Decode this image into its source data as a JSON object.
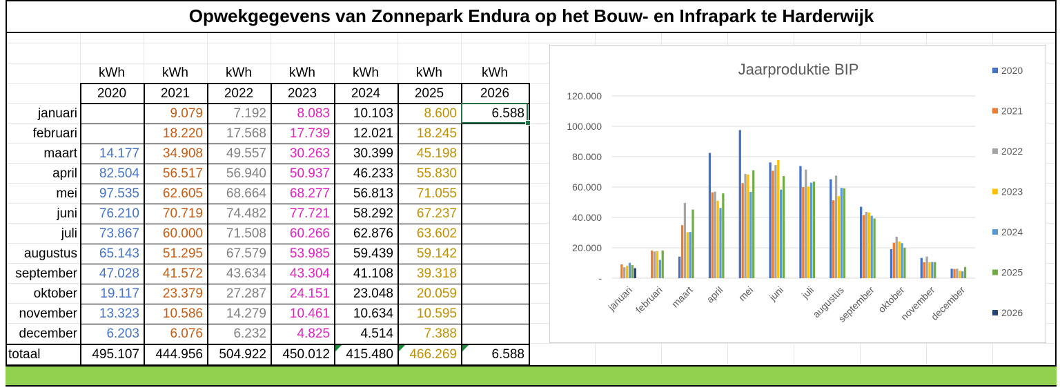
{
  "title": "Opwekgegevens van Zonnepark Endura op het Bouw- en Infrapark te Harderwijk",
  "table": {
    "unit_label": "kWh",
    "years": [
      "2020",
      "2021",
      "2022",
      "2023",
      "2024",
      "2025",
      "2026"
    ],
    "year_colors": [
      "#4472c4",
      "#c55a11",
      "#7f7f7f",
      "#e020c0",
      "#000000",
      "#bf9000",
      "#000000"
    ],
    "rows": [
      {
        "month": "januari",
        "values": [
          "",
          "9.079",
          "7.192",
          "8.083",
          "10.103",
          "8.600",
          "6.588"
        ]
      },
      {
        "month": "februari",
        "values": [
          "",
          "18.220",
          "17.568",
          "17.739",
          "12.021",
          "18.245",
          ""
        ]
      },
      {
        "month": "maart",
        "values": [
          "14.177",
          "34.908",
          "49.557",
          "30.263",
          "30.399",
          "45.198",
          ""
        ]
      },
      {
        "month": "april",
        "values": [
          "82.504",
          "56.517",
          "56.940",
          "50.937",
          "46.233",
          "55.830",
          ""
        ]
      },
      {
        "month": "mei",
        "values": [
          "97.535",
          "62.605",
          "68.664",
          "68.277",
          "56.813",
          "71.055",
          ""
        ]
      },
      {
        "month": "juni",
        "values": [
          "76.210",
          "70.719",
          "74.482",
          "77.721",
          "58.292",
          "67.237",
          ""
        ]
      },
      {
        "month": "juli",
        "values": [
          "73.867",
          "60.000",
          "71.508",
          "60.266",
          "62.876",
          "63.602",
          ""
        ]
      },
      {
        "month": "augustus",
        "values": [
          "65.143",
          "51.295",
          "67.579",
          "53.985",
          "59.439",
          "59.142",
          ""
        ]
      },
      {
        "month": "september",
        "values": [
          "47.028",
          "41.572",
          "43.634",
          "43.304",
          "41.108",
          "39.318",
          ""
        ]
      },
      {
        "month": "oktober",
        "values": [
          "19.117",
          "23.379",
          "27.287",
          "24.151",
          "23.048",
          "20.059",
          ""
        ]
      },
      {
        "month": "november",
        "values": [
          "13.323",
          "10.586",
          "14.279",
          "10.461",
          "10.634",
          "10.595",
          ""
        ]
      },
      {
        "month": "december",
        "values": [
          "6.203",
          "6.076",
          "6.232",
          "4.825",
          "4.514",
          "7.388",
          ""
        ]
      }
    ],
    "total_label": "totaal",
    "totals": [
      "495.107",
      "444.956",
      "504.922",
      "450.012",
      "415.480",
      "466.269",
      "6.588"
    ]
  },
  "chart_data": {
    "type": "bar",
    "title": "Jaarproduktie BIP",
    "categories": [
      "januari",
      "februari",
      "maart",
      "april",
      "mei",
      "juni",
      "juli",
      "augustus",
      "september",
      "oktober",
      "november",
      "december"
    ],
    "ylim": [
      0,
      120000
    ],
    "yticks": [
      "-",
      "20.000",
      "40.000",
      "60.000",
      "80.000",
      "100.000",
      "120.000"
    ],
    "grid": true,
    "legend_position": "right",
    "series": [
      {
        "name": "2020",
        "color": "#4472c4",
        "values": [
          0,
          0,
          14177,
          82504,
          97535,
          76210,
          73867,
          65143,
          47028,
          19117,
          13323,
          6203
        ]
      },
      {
        "name": "2021",
        "color": "#ed7d31",
        "values": [
          9079,
          18220,
          34908,
          56517,
          62605,
          70719,
          60000,
          51295,
          41572,
          23379,
          10586,
          6076
        ]
      },
      {
        "name": "2022",
        "color": "#a5a5a5",
        "values": [
          7192,
          17568,
          49557,
          56940,
          68664,
          74482,
          71508,
          67579,
          43634,
          27287,
          14279,
          6232
        ]
      },
      {
        "name": "2023",
        "color": "#ffc000",
        "values": [
          8083,
          17739,
          30263,
          50937,
          68277,
          77721,
          60266,
          53985,
          43304,
          24151,
          10461,
          4825
        ]
      },
      {
        "name": "2024",
        "color": "#5b9bd5",
        "values": [
          10103,
          12021,
          30399,
          46233,
          56813,
          58292,
          62876,
          59439,
          41108,
          23048,
          10634,
          4514
        ]
      },
      {
        "name": "2025",
        "color": "#70ad47",
        "values": [
          8600,
          18245,
          45198,
          55830,
          71055,
          67237,
          63602,
          59142,
          39318,
          20059,
          10595,
          7388
        ]
      },
      {
        "name": "2026",
        "color": "#264478",
        "values": [
          6588,
          0,
          0,
          0,
          0,
          0,
          0,
          0,
          0,
          0,
          0,
          0
        ]
      }
    ]
  }
}
